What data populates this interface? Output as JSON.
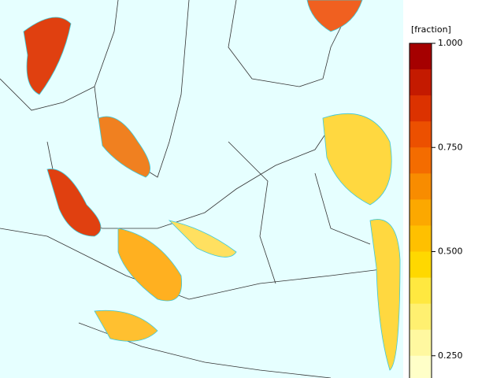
{
  "colorbar": {
    "label": "[fraction]",
    "range": [
      0.1875,
      1
    ],
    "ticks": [
      {
        "value": 1,
        "label": "1.000"
      },
      {
        "value": 0.75,
        "label": "0.750"
      },
      {
        "value": 0.5,
        "label": "0.500"
      },
      {
        "value": 0.25,
        "label": "0.250"
      }
    ],
    "colors": [
      "#a50000",
      "#c41a00",
      "#dc3200",
      "#ec5000",
      "#f46c00",
      "#f88c00",
      "#fca800",
      "#ffc000",
      "#ffd800",
      "#ffe840",
      "#fff070",
      "#fff8a0",
      "#ffffc8"
    ]
  }
}
